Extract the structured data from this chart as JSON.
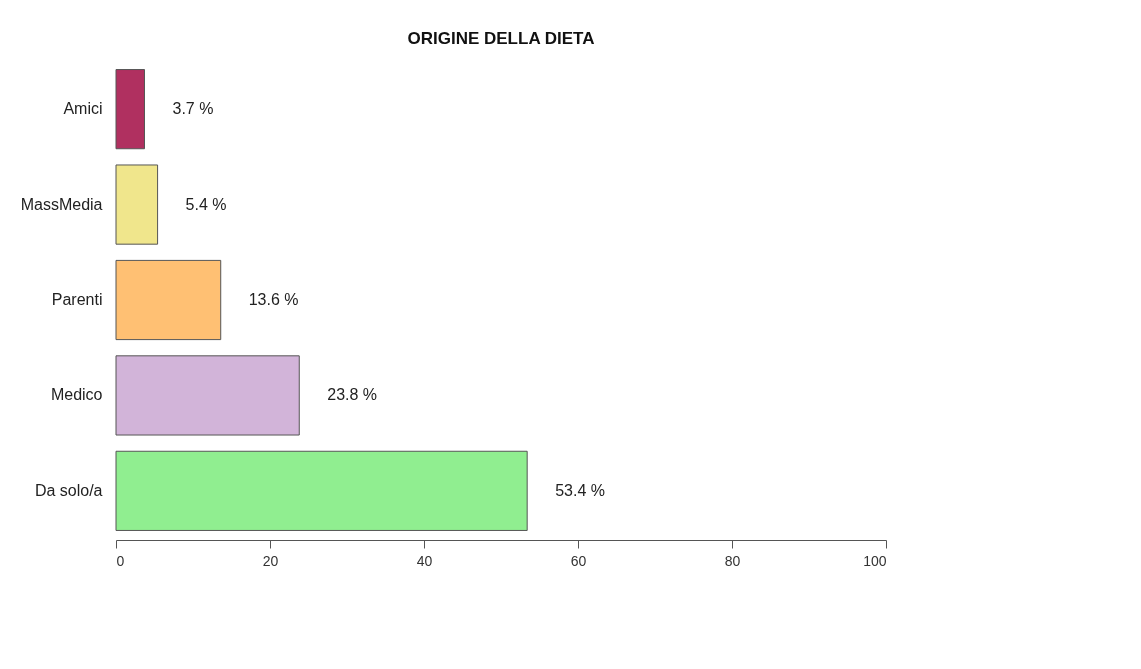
{
  "chart_data": {
    "type": "bar",
    "orientation": "horizontal",
    "title": "ORIGINE DELLA DIETA",
    "categories": [
      "Amici",
      "MassMedia",
      "Parenti",
      "Medico",
      "Da solo/a"
    ],
    "values": [
      3.7,
      5.4,
      13.6,
      23.8,
      53.4
    ],
    "colors": [
      "#b03060",
      "#f0e68c",
      "#ffc073",
      "#d2b4d9",
      "#90ee90"
    ],
    "value_labels": [
      "3.7 %",
      "5.4 %",
      "13.6 %",
      "23.8 %",
      "53.4 %"
    ],
    "xlim": [
      0,
      100
    ],
    "xticks": [
      0,
      20,
      40,
      60,
      80,
      100
    ],
    "grid": false
  }
}
